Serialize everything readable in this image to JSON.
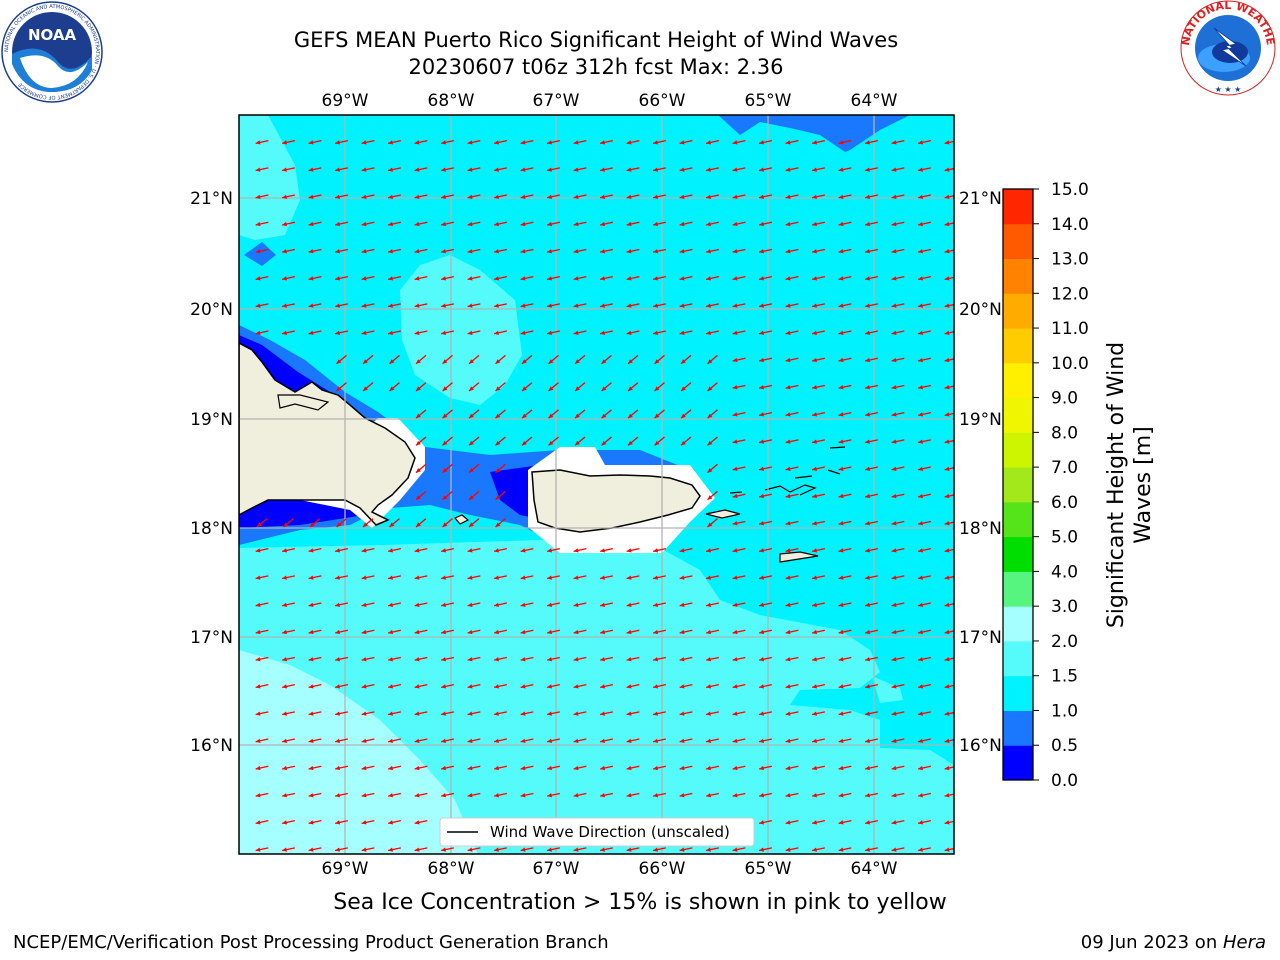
{
  "title": {
    "line1": "GEFS MEAN Puerto Rico Significant Height of Wind Waves",
    "line2": "20230607 t06z 312h fcst   Max: 2.36"
  },
  "logos": {
    "noaa_text": "NOAA",
    "noaa_ring": "NATIONAL OCEANIC AND ATMOSPHERIC ADMINISTRATION · U.S. DEPARTMENT OF COMMERCE",
    "nws_ring": "NATIONAL WEATHER SERVICE"
  },
  "axes": {
    "lon_ticks": [
      "69°W",
      "68°W",
      "67°W",
      "66°W",
      "65°W",
      "64°W"
    ],
    "lat_ticks": [
      "21°N",
      "20°N",
      "19°N",
      "18°N",
      "17°N",
      "16°N"
    ]
  },
  "legend": {
    "label": "Wind Wave Direction (unscaled)"
  },
  "colorbar": {
    "label_line1": "Significant Height of Wind",
    "label_line2": "Waves [m]",
    "ticks": [
      "0.0",
      "0.5",
      "1.0",
      "1.5",
      "2.0",
      "3.0",
      "4.0",
      "5.0",
      "6.0",
      "7.0",
      "8.0",
      "9.0",
      "10.0",
      "11.0",
      "12.0",
      "13.0",
      "14.0",
      "15.0"
    ],
    "colors": [
      "#0000ff",
      "#1a78ff",
      "#00f2ff",
      "#55fafa",
      "#a6ffff",
      "#55f57f",
      "#00dd00",
      "#55e31a",
      "#a2e81a",
      "#cdf500",
      "#f0f500",
      "#fff000",
      "#ffcc00",
      "#ffab00",
      "#ff8300",
      "#ff5a00",
      "#ff2600"
    ]
  },
  "sea_ice_note": "Sea Ice Concentration > 15% is shown in pink to yellow",
  "footer": {
    "left": "NCEP/EMC/Verification Post Processing Product Generation Branch",
    "right_date": "09 Jun 2023 on ",
    "right_host": "Hera"
  }
}
